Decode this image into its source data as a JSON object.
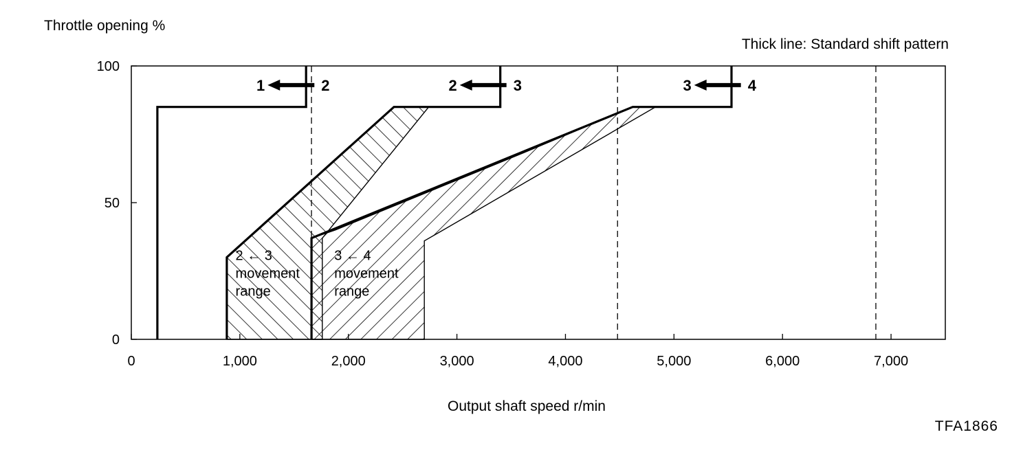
{
  "chart_data": {
    "type": "line",
    "title": "",
    "ylabel": "Throttle opening %",
    "xlabel": "Output shaft speed r/min",
    "legend_note": "Thick line: Standard shift pattern",
    "figure_code": "TFA1866",
    "xlim": [
      0,
      7500
    ],
    "ylim": [
      0,
      100
    ],
    "x_ticks": [
      {
        "value": 0,
        "label": "0"
      },
      {
        "value": 1000,
        "label": "1,000"
      },
      {
        "value": 2000,
        "label": "2,000"
      },
      {
        "value": 3000,
        "label": "3,000"
      },
      {
        "value": 4000,
        "label": "4,000"
      },
      {
        "value": 5000,
        "label": "5,000"
      },
      {
        "value": 6000,
        "label": "6,000"
      },
      {
        "value": 7000,
        "label": "7,000"
      }
    ],
    "y_ticks": [
      {
        "value": 0,
        "label": "0"
      },
      {
        "value": 50,
        "label": "50"
      },
      {
        "value": 100,
        "label": "100"
      }
    ],
    "vertical_dashed_lines": [
      1660,
      4480,
      6860
    ],
    "series": [
      {
        "points": [
          [
            240,
            0
          ],
          [
            240,
            85
          ],
          [
            1610,
            85
          ],
          [
            1610,
            100
          ]
        ]
      },
      {
        "points": [
          [
            880,
            0
          ],
          [
            880,
            30
          ],
          [
            2420,
            85
          ],
          [
            3400,
            85
          ],
          [
            3400,
            100
          ]
        ]
      },
      {
        "points": [
          [
            1660,
            0
          ],
          [
            1660,
            37
          ],
          [
            4620,
            85
          ],
          [
            5530,
            85
          ],
          [
            5530,
            100
          ]
        ]
      }
    ],
    "ranges": [
      {
        "points": [
          [
            880,
            0
          ],
          [
            880,
            30
          ],
          [
            2420,
            85
          ],
          [
            2740,
            85
          ],
          [
            1760,
            37
          ],
          [
            1760,
            0
          ]
        ]
      },
      {
        "points": [
          [
            1660,
            0
          ],
          [
            1660,
            37
          ],
          [
            1880,
            40
          ],
          [
            3600,
            68
          ],
          [
            4620,
            85
          ],
          [
            4830,
            85
          ],
          [
            2700,
            36
          ],
          [
            2700,
            0
          ]
        ]
      }
    ],
    "shift_labels": [
      {
        "from": "1",
        "to": "2",
        "x": 1560,
        "y": 93
      },
      {
        "from": "2",
        "to": "3",
        "x": 3330,
        "y": 93
      },
      {
        "from": "3",
        "to": "4",
        "x": 5490,
        "y": 93
      }
    ],
    "range_labels": [
      {
        "lines": [
          "2 ← 3",
          "movement",
          "range"
        ],
        "x": 960,
        "y": 29
      },
      {
        "lines": [
          "3 ← 4",
          "movement",
          "range"
        ],
        "x": 1870,
        "y": 29
      }
    ]
  }
}
